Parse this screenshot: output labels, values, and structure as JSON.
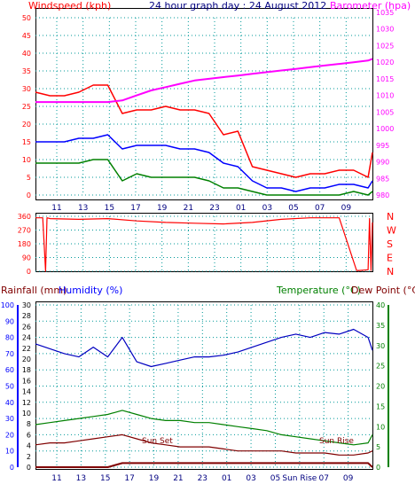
{
  "chart_data": [
    {
      "panel": "wind_baro",
      "type": "line",
      "title": "24 hour graph day : 24 August 2012",
      "left_axis_label": "Windspeed (kph)",
      "right_axis_label": "Barometer (hpa)",
      "ylim_left": [
        0,
        50
      ],
      "ylim_right": [
        980,
        1035
      ],
      "left_ticks": [
        "0",
        "5",
        "10",
        "15",
        "20",
        "25",
        "30",
        "35",
        "40",
        "45",
        "50"
      ],
      "right_ticks": [
        "980",
        "985",
        "990",
        "995",
        "1000",
        "1005",
        "1010",
        "1015",
        "1020",
        "1025",
        "1030",
        "1035"
      ],
      "x_hours": [
        10,
        11,
        12,
        13,
        14,
        15,
        16,
        17,
        18,
        19,
        20,
        21,
        22,
        23,
        24,
        25,
        26,
        27,
        28,
        29,
        30,
        31,
        32,
        33,
        33.3
      ],
      "x_tick_labels": [
        "11",
        "13",
        "15",
        "17",
        "19",
        "21",
        "23",
        "01",
        "03",
        "05",
        "07",
        "09"
      ],
      "grid": true,
      "colors": {
        "gust": "#ff0000",
        "average": "#0000ff",
        "low": "#008000",
        "barometer": "#ff00ff",
        "left_axis": "#ff0000",
        "right_axis": "#ff00ff",
        "title": "#000080"
      },
      "series": [
        {
          "key": "gust",
          "values": [
            29,
            28,
            28,
            29,
            31,
            31,
            23,
            24,
            24,
            25,
            24,
            24,
            23,
            17,
            18,
            8,
            7,
            6,
            5,
            6,
            6,
            7,
            7,
            5,
            12
          ]
        },
        {
          "key": "average",
          "values": [
            15,
            15,
            15,
            16,
            16,
            17,
            13,
            14,
            14,
            14,
            13,
            13,
            12,
            9,
            8,
            4,
            2,
            2,
            1,
            2,
            2,
            3,
            3,
            2,
            4
          ]
        },
        {
          "key": "low",
          "values": [
            9,
            9,
            9,
            9,
            10,
            10,
            4,
            6,
            5,
            5,
            5,
            5,
            4,
            2,
            2,
            1,
            0,
            0,
            0,
            0,
            0,
            0,
            1,
            0,
            1
          ]
        },
        {
          "key": "barometer",
          "axis": "right",
          "values": [
            1008,
            1008,
            1008,
            1008,
            1008,
            1008,
            1008.5,
            1010,
            1011.5,
            1012.5,
            1013.5,
            1014.5,
            1015,
            1015.5,
            1016,
            1016.5,
            1017,
            1017.5,
            1018,
            1018.5,
            1019,
            1019.5,
            1020,
            1020.5,
            1021
          ]
        }
      ]
    },
    {
      "panel": "wind_direction",
      "type": "line",
      "ylim": [
        0,
        360
      ],
      "left_ticks": [
        "0",
        "90",
        "180",
        "270",
        "360"
      ],
      "compass_labels": [
        "N",
        "W",
        "S",
        "E",
        "N"
      ],
      "color": "#ff0000",
      "x_hours": [
        10,
        10.5,
        10.7,
        10.8,
        11,
        13,
        15,
        17,
        19,
        21,
        23,
        25,
        27,
        29,
        31,
        32.2,
        32.4,
        33,
        33.1,
        33.2,
        33.3
      ],
      "values": [
        350,
        350,
        0,
        350,
        345,
        340,
        345,
        330,
        320,
        315,
        310,
        320,
        340,
        350,
        350,
        5,
        5,
        10,
        345,
        5,
        320
      ]
    },
    {
      "panel": "temp_hum_rain",
      "type": "line",
      "title_left": "Rainfall (mm)",
      "title_humidity": "Humidity (%)",
      "title_right": "Temperature (°C)",
      "title_dew": "Dew Point (°C)",
      "rain_ticks": [
        "0",
        "2",
        "4",
        "6",
        "8",
        "10",
        "12",
        "14",
        "16",
        "18",
        "20",
        "22",
        "24",
        "26",
        "28",
        "30"
      ],
      "humidity_ticks": [
        "0",
        "10",
        "20",
        "30",
        "40",
        "50",
        "60",
        "70",
        "80",
        "90",
        "100"
      ],
      "temp_ticks": [
        "0",
        "5",
        "10",
        "15",
        "20",
        "25",
        "30",
        "35",
        "40"
      ],
      "ylim_humidity": [
        0,
        100
      ],
      "ylim_temp": [
        0,
        40
      ],
      "x_tick_labels": [
        "11",
        "13",
        "15",
        "17",
        "19",
        "21",
        "23",
        "01",
        "03",
        "05",
        "Sun Rise",
        "07",
        "09"
      ],
      "annotations": [
        "Sun Set",
        "Sun Rise"
      ],
      "colors": {
        "humidity": "#0000c0",
        "temperature": "#008000",
        "dewpoint": "#800000",
        "rain": "#800000",
        "temp_axis": "#008000",
        "humidity_axis": "#0000ff"
      },
      "x_hours": [
        10,
        11,
        12,
        13,
        14,
        15,
        16,
        17,
        18,
        19,
        20,
        21,
        22,
        23,
        24,
        25,
        26,
        27,
        28,
        29,
        30,
        31,
        32,
        33,
        33.3
      ],
      "series": [
        {
          "key": "humidity",
          "values": [
            76,
            73,
            70,
            68,
            74,
            68,
            80,
            65,
            62,
            64,
            66,
            68,
            68,
            69,
            71,
            74,
            77,
            80,
            82,
            80,
            83,
            82,
            85,
            80,
            72
          ]
        },
        {
          "key": "temperature",
          "values": [
            10.5,
            11,
            11.5,
            12,
            12.5,
            13,
            14,
            13,
            12,
            11.5,
            11.5,
            11,
            11,
            10.5,
            10,
            9.5,
            9,
            8,
            7.5,
            7,
            6.5,
            6,
            5.5,
            6,
            8
          ]
        },
        {
          "key": "dewpoint",
          "values": [
            5.5,
            6,
            6,
            6.5,
            7,
            7.5,
            8,
            7,
            6,
            5.5,
            5,
            5,
            5,
            4.5,
            4,
            4,
            4,
            4,
            3.5,
            3.5,
            3.5,
            3,
            3,
            3.5,
            4
          ]
        },
        {
          "key": "rain",
          "values": [
            0,
            0,
            0,
            0,
            0,
            0,
            1,
            1,
            1,
            1,
            1,
            1,
            1,
            1,
            1,
            1,
            1,
            1,
            1,
            1,
            1,
            1,
            1,
            1,
            0
          ]
        }
      ]
    }
  ]
}
